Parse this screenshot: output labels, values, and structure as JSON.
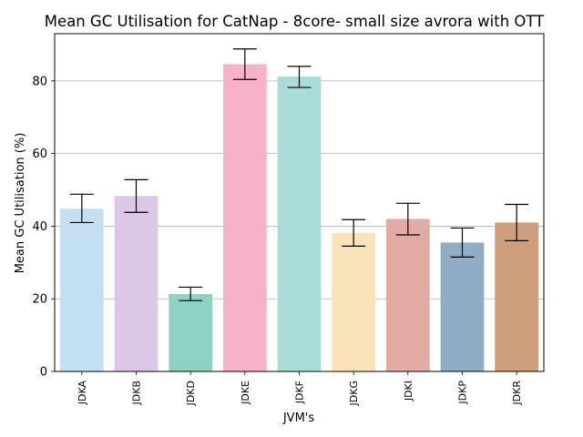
{
  "chart_data": {
    "type": "bar",
    "title": "Mean GC Utilisation for CatNap - 8core- small size avrora with OTT",
    "xlabel": "JVM's",
    "ylabel": "Mean GC Utilisation (%)",
    "ylim": [
      0,
      93
    ],
    "yticks": [
      0,
      20,
      40,
      60,
      80
    ],
    "grid": "horizontal",
    "categories": [
      "JDKA",
      "JDKB",
      "JDKD",
      "JDKE",
      "JDKF",
      "JDKG",
      "JDKI",
      "JDKP",
      "JDKR"
    ],
    "values": [
      44.8,
      48.3,
      21.3,
      84.6,
      81.2,
      38.2,
      42.0,
      35.5,
      41.0
    ],
    "error_low": [
      41.0,
      43.8,
      19.5,
      80.4,
      78.2,
      34.5,
      37.6,
      31.5,
      36.0
    ],
    "error_high": [
      48.8,
      52.8,
      23.2,
      88.8,
      84.0,
      41.8,
      46.3,
      39.5,
      46.0
    ],
    "colors": [
      "#c2e0f2",
      "#dcc7e6",
      "#8dd2c3",
      "#f7b1c9",
      "#a8dcd6",
      "#fae2b9",
      "#e2aca5",
      "#8faec5",
      "#cd9d7c"
    ]
  }
}
